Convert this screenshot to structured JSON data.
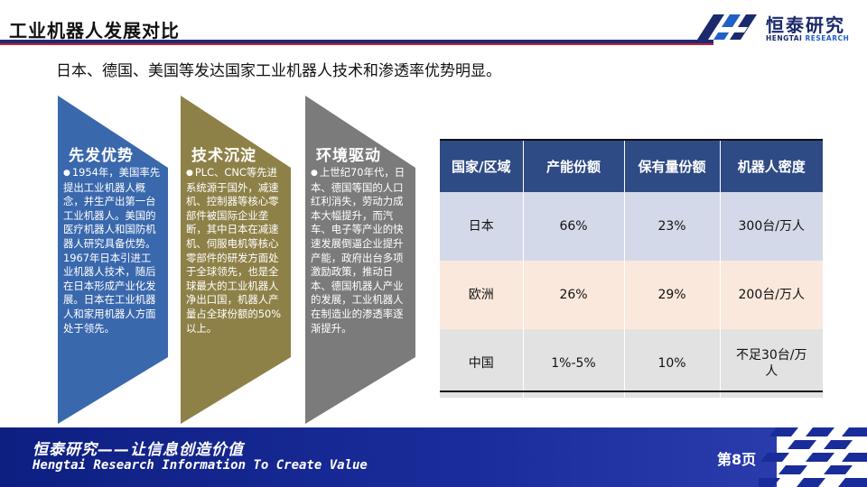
{
  "header": {
    "title": "工业机器人发展对比",
    "logo_name": "恒泰研究",
    "logo_sub_1": "HENGTAI",
    "logo_sub_2": "RESEARCH"
  },
  "subtitle": "日本、德国、美国等发达国家工业机器人技术和渗透率优势明显。",
  "colors": {
    "chevron_1": "#3a68ad",
    "chevron_2": "#8e8148",
    "chevron_3": "#7b7b7b",
    "table_header": "#2f4b85"
  },
  "chevrons": [
    {
      "title": "先发优势",
      "bullet": "●",
      "text": "1954年，美国率先提出工业机器人概念，并生产出第一台工业机器人。美国的医疗机器人和国防机器人研究具备优势。1967年日本引进工业机器人技术，随后在日本形成产业化发展。日本在工业机器人和家用机器人方面处于领先。"
    },
    {
      "title": "技术沉淀",
      "bullet": "●",
      "text": "PLC、CNC等先进系统源于国外，减速机、控制器等核心零部件被国际企业垄断，其中日本在减速机、伺服电机等核心零部件的研发方面处于全球领先，也是全球最大的工业机器人净出口国，机器人产量占全球份额的50%以上。"
    },
    {
      "title": "环境驱动",
      "bullet": "●",
      "text": "上世纪70年代，日本、德国等国的人口红利消失，劳动力成本大幅提升，而汽车、电子等产业的快速发展倒逼企业提升产能，政府出台多项激励政策，推动日本、德国机器人产业的发展，工业机器人在制造业的渗透率逐渐提升。"
    }
  ],
  "table": {
    "headers": [
      "国家/区域",
      "产能份额",
      "保有量份额",
      "机器人密度"
    ],
    "rows": [
      [
        "日本",
        "66%",
        "23%",
        "300台/万人"
      ],
      [
        "欧洲",
        "26%",
        "29%",
        "200台/万人"
      ],
      [
        "中国",
        "1%-5%",
        "10%",
        "不足30台/万人"
      ]
    ]
  },
  "footer": {
    "slogan": "恒泰研究——让信息创造价值",
    "slogan_en": "Hengtai Research Information To Create Value",
    "page": "第8页"
  }
}
